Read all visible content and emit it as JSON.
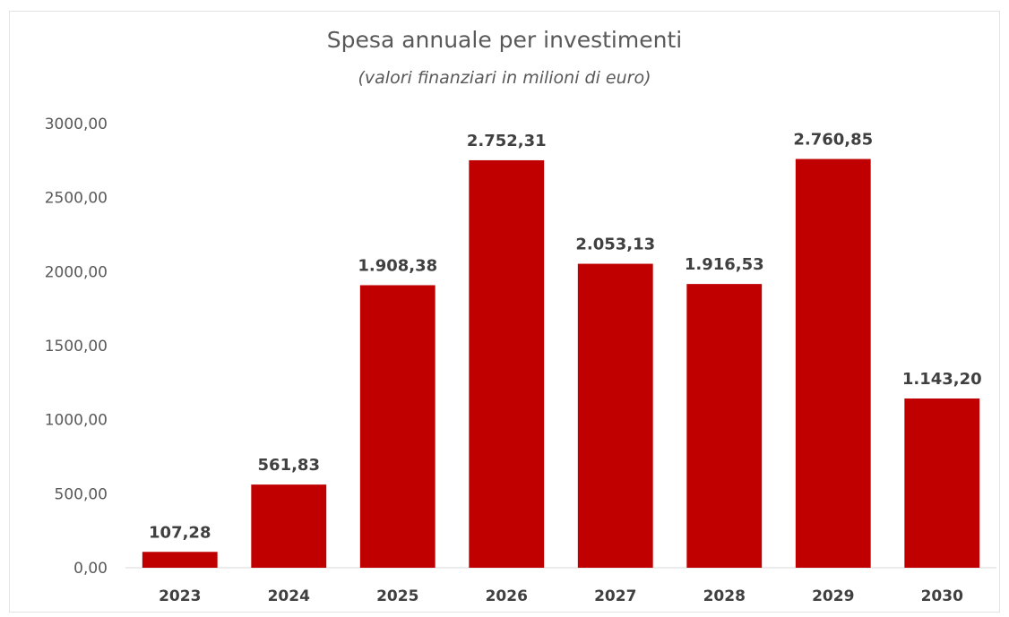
{
  "chart_data": {
    "type": "bar",
    "title": "Spesa annuale per investimenti",
    "subtitle": "(valori finanziari in milioni di euro)",
    "xlabel": "",
    "ylabel": "",
    "categories": [
      "2023",
      "2024",
      "2025",
      "2026",
      "2027",
      "2028",
      "2029",
      "2030"
    ],
    "values": [
      107.28,
      561.83,
      1908.38,
      2752.31,
      2053.13,
      1916.53,
      2760.85,
      1143.2
    ],
    "data_labels": [
      "107,28",
      "561,83",
      "1.908,38",
      "2.752,31",
      "2.053,13",
      "1.916,53",
      "2.760,85",
      "1.143,20"
    ],
    "ylim": [
      0,
      3000
    ],
    "y_ticks": [
      0,
      500,
      1000,
      1500,
      2000,
      2500,
      3000
    ],
    "y_tick_labels": [
      "0,00",
      "500,00",
      "1000,00",
      "1500,00",
      "2000,00",
      "2500,00",
      "3000,00"
    ],
    "grid": false,
    "legend": "none",
    "bar_color": "#c00000"
  }
}
